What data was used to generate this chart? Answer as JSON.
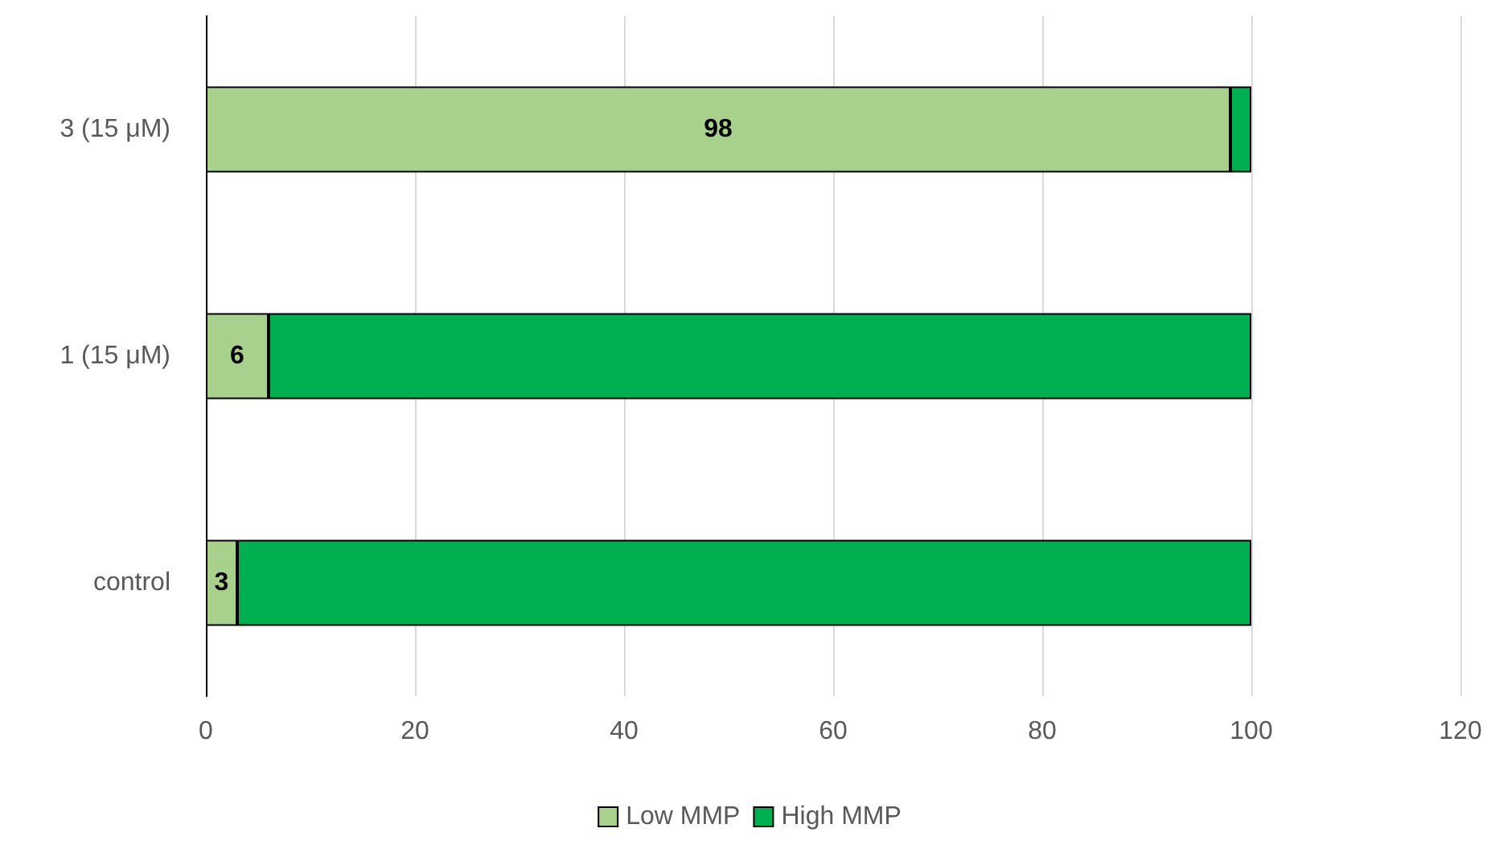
{
  "chart_data": {
    "type": "bar",
    "orientation": "horizontal",
    "stacked": true,
    "categories": [
      "3 (15 μM)",
      "1 (15 μM)",
      "control"
    ],
    "series": [
      {
        "name": "Low MMP",
        "color": "#a9d18e",
        "values": [
          98,
          6,
          3
        ],
        "value_labels": [
          "98",
          "6",
          "3"
        ]
      },
      {
        "name": "High MMP",
        "color": "#00b050",
        "values": [
          2,
          94,
          97
        ]
      }
    ],
    "xlim": [
      0,
      120
    ],
    "xticks": [
      0,
      20,
      40,
      60,
      80,
      100,
      120
    ],
    "grid": "x",
    "legend": "bottom"
  }
}
